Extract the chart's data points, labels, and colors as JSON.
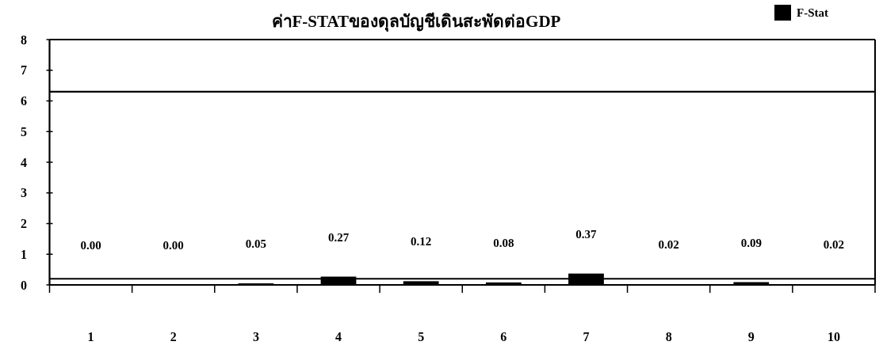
{
  "chart_data": {
    "type": "bar",
    "title": "ค่าF-STATของดุลบัญชีเดินสะพัดต่อGDP",
    "categories": [
      "1",
      "2",
      "3",
      "4",
      "5",
      "6",
      "7",
      "8",
      "9",
      "10"
    ],
    "series": [
      {
        "name": "F-Stat",
        "color": "#000000",
        "values": [
          0,
          0,
          0.05,
          0.27,
          0.12,
          0.08,
          0.37,
          0.02,
          0.09,
          0.02
        ],
        "value_labels": [
          "0.00",
          "0.00",
          "0.05",
          "0.27",
          "0.12",
          "0.08",
          "0.37",
          "0.02",
          "0.09",
          "0.02"
        ]
      }
    ],
    "ylim": [
      0,
      8
    ],
    "yticks": [
      0,
      1,
      2,
      3,
      4,
      5,
      6,
      7,
      8
    ],
    "ref_lines": [
      {
        "axis": "y",
        "value": 6.3,
        "color": "#000000"
      },
      {
        "axis": "y",
        "value": 0.2,
        "color": "#000000"
      }
    ],
    "legend": "top right"
  }
}
